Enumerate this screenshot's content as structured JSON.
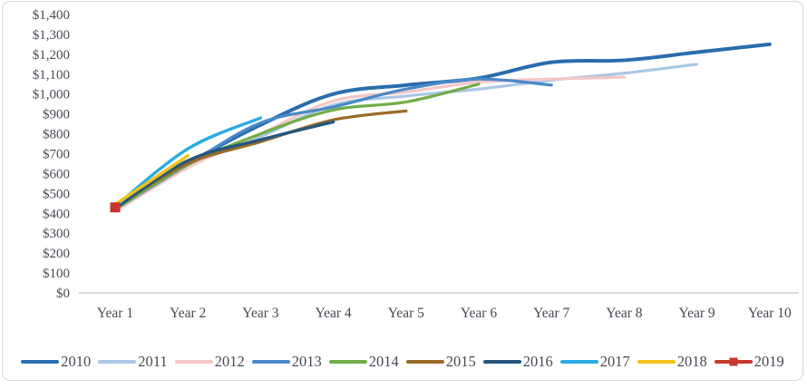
{
  "chart_data": {
    "type": "line",
    "title": "",
    "xlabel": "",
    "ylabel": "",
    "grid": false,
    "smoothed_lines": true,
    "legend_position": "bottom",
    "ylim": [
      0,
      1400
    ],
    "x_categories": [
      "Year 1",
      "Year 2",
      "Year 3",
      "Year 4",
      "Year 5",
      "Year 6",
      "Year 7",
      "Year 8",
      "Year 9",
      "Year 10"
    ],
    "y_ticks": [
      {
        "value": 0,
        "label": "$0"
      },
      {
        "value": 100,
        "label": "$100"
      },
      {
        "value": 200,
        "label": "$200"
      },
      {
        "value": 300,
        "label": "$300"
      },
      {
        "value": 400,
        "label": "$400"
      },
      {
        "value": 500,
        "label": "$500"
      },
      {
        "value": 600,
        "label": "$600"
      },
      {
        "value": 700,
        "label": "$700"
      },
      {
        "value": 800,
        "label": "$800"
      },
      {
        "value": 900,
        "label": "$900"
      },
      {
        "value": 1000,
        "label": "$1,000"
      },
      {
        "value": 1100,
        "label": "$1,100"
      },
      {
        "value": 1200,
        "label": "$1,200"
      },
      {
        "value": 1300,
        "label": "$1,300"
      },
      {
        "value": 1400,
        "label": "$1,400"
      }
    ],
    "series": [
      {
        "name": "2010",
        "color": "#2a6dad",
        "stroke_width": 4,
        "marker": "none",
        "values": [
          420,
          650,
          845,
          1000,
          1045,
          1080,
          1160,
          1170,
          1210,
          1250
        ]
      },
      {
        "name": "2011",
        "color": "#aac7e6",
        "stroke_width": 3.2,
        "marker": "none",
        "values": [
          415,
          635,
          785,
          945,
          990,
          1025,
          1070,
          1105,
          1150
        ]
      },
      {
        "name": "2012",
        "color": "#f5c6c6",
        "stroke_width": 3.2,
        "marker": "none",
        "values": [
          410,
          630,
          800,
          965,
          1010,
          1060,
          1075,
          1085
        ]
      },
      {
        "name": "2013",
        "color": "#4a89c8",
        "stroke_width": 3.2,
        "marker": "none",
        "values": [
          420,
          645,
          855,
          935,
          1025,
          1075,
          1045
        ]
      },
      {
        "name": "2014",
        "color": "#70ad47",
        "stroke_width": 3.2,
        "marker": "none",
        "values": [
          420,
          645,
          800,
          920,
          960,
          1050
        ]
      },
      {
        "name": "2015",
        "color": "#9a6a29",
        "stroke_width": 3.2,
        "marker": "none",
        "values": [
          430,
          650,
          760,
          870,
          915
        ]
      },
      {
        "name": "2016",
        "color": "#24567e",
        "stroke_width": 3.4,
        "marker": "none",
        "values": [
          425,
          665,
          770,
          860
        ]
      },
      {
        "name": "2017",
        "color": "#2aabe2",
        "stroke_width": 3.4,
        "marker": "none",
        "values": [
          435,
          725,
          880
        ]
      },
      {
        "name": "2018",
        "color": "#f2c318",
        "stroke_width": 3.4,
        "marker": "none",
        "values": [
          445,
          690
        ]
      },
      {
        "name": "2019",
        "color": "#c8372d",
        "stroke_width": 3.4,
        "marker": "square",
        "values": [
          430
        ]
      }
    ]
  },
  "axis_colors": {
    "axis_line": "#cfcfcf",
    "tick_text": "#494955"
  }
}
